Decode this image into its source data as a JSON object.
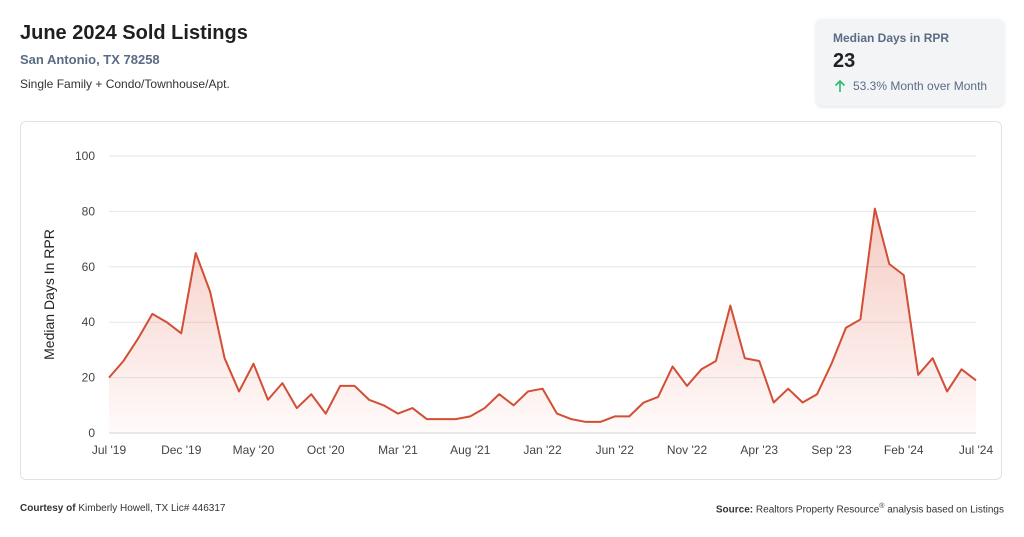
{
  "header": {
    "title": "June 2024 Sold Listings",
    "location": "San Antonio, TX 78258",
    "property_types": "Single Family + Condo/Townhouse/Apt."
  },
  "kpi": {
    "label": "Median Days in RPR",
    "value": "23",
    "change": "53.3% Month over Month",
    "change_direction": "up",
    "arrow_color": "#2eb86b"
  },
  "footer": {
    "courtesy_label": "Courtesy of",
    "courtesy_text": "Kimberly Howell, TX Lic# 446317",
    "source_label": "Source:",
    "source_text": "Realtors Property Resource",
    "source_mark": "®",
    "source_suffix": " analysis based on Listings"
  },
  "chart_data": {
    "type": "area",
    "ylabel": "Median Days In RPR",
    "ylim": [
      0,
      100
    ],
    "yticks": [
      0,
      20,
      40,
      60,
      80,
      100
    ],
    "x_tick_labels": [
      {
        "label": "Jul '19",
        "index": 0
      },
      {
        "label": "Dec '19",
        "index": 5
      },
      {
        "label": "May '20",
        "index": 10
      },
      {
        "label": "Oct '20",
        "index": 15
      },
      {
        "label": "Mar '21",
        "index": 20
      },
      {
        "label": "Aug '21",
        "index": 25
      },
      {
        "label": "Jan '22",
        "index": 30
      },
      {
        "label": "Jun '22",
        "index": 35
      },
      {
        "label": "Nov '22",
        "index": 40
      },
      {
        "label": "Apr '23",
        "index": 45
      },
      {
        "label": "Sep '23",
        "index": 50
      },
      {
        "label": "Feb '24",
        "index": 55
      },
      {
        "label": "Jul '24",
        "index": 60
      }
    ],
    "grid": true,
    "line_color": "#d24e35",
    "values": [
      20,
      26,
      34,
      43,
      40,
      36,
      65,
      51,
      27,
      15,
      25,
      12,
      18,
      9,
      14,
      7,
      17,
      17,
      12,
      10,
      7,
      9,
      5,
      5,
      5,
      6,
      9,
      14,
      10,
      15,
      16,
      7,
      5,
      4,
      4,
      6,
      6,
      11,
      13,
      24,
      17,
      23,
      26,
      46,
      27,
      26,
      11,
      16,
      11,
      14,
      25,
      38,
      41,
      81,
      61,
      57,
      21,
      27,
      15,
      23,
      19
    ]
  }
}
